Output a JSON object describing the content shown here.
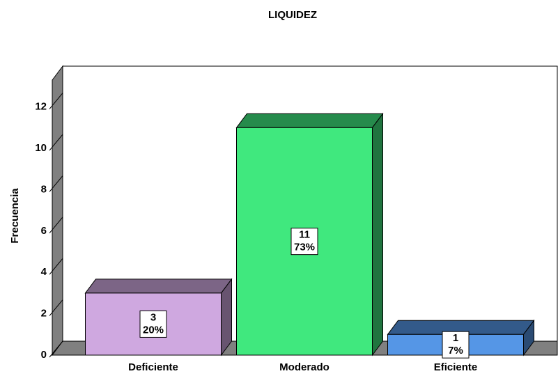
{
  "chart_data": {
    "type": "bar3d",
    "title": "LIQUIDEZ",
    "y_label": "Frecuencia",
    "categories": [
      "Deficiente",
      "Moderado",
      "Eficiente"
    ],
    "values": [
      3,
      11,
      1
    ],
    "percent_labels": [
      "20%",
      "73%",
      "7%"
    ],
    "colors": [
      "#cfa8e0",
      "#40e87e",
      "#5596e6"
    ],
    "ylim": [
      0,
      13.3
    ],
    "yticks": [
      0,
      2,
      4,
      6,
      8,
      10,
      12
    ]
  }
}
